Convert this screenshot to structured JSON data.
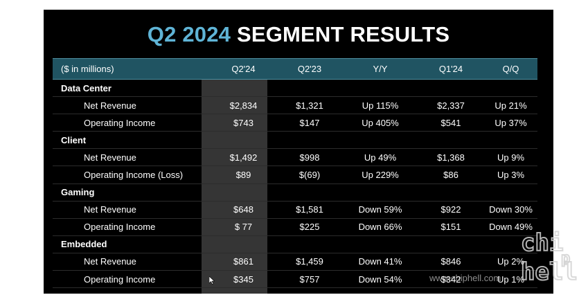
{
  "title": {
    "highlight": "Q2 2024",
    "rest": " SEGMENT RESULTS"
  },
  "header": {
    "label": "($ in millions)",
    "columns": [
      "Q2'24",
      "Q2'23",
      "Y/Y",
      "Q1'24",
      "Q/Q"
    ]
  },
  "rows": [
    {
      "type": "segment",
      "label": "Data Center",
      "values": [
        "",
        "",
        "",
        "",
        ""
      ]
    },
    {
      "type": "metric",
      "label": "Net Revenue",
      "values": [
        "$2,834",
        "$1,321",
        "Up 115%",
        "$2,337",
        "Up 21%"
      ]
    },
    {
      "type": "metric",
      "label": "Operating Income",
      "values": [
        "$743",
        "$147",
        "Up 405%",
        "$541",
        "Up 37%"
      ]
    },
    {
      "type": "segment",
      "label": "Client",
      "values": [
        "",
        "",
        "",
        "",
        ""
      ]
    },
    {
      "type": "metric",
      "label": "Net Revenue",
      "values": [
        "$1,492",
        "$998",
        "Up 49%",
        "$1,368",
        "Up 9%"
      ]
    },
    {
      "type": "metric",
      "label": "Operating Income (Loss)",
      "values": [
        "$89",
        "$(69)",
        "Up 229%",
        "$86",
        "Up 3%"
      ]
    },
    {
      "type": "segment",
      "label": "Gaming",
      "values": [
        "",
        "",
        "",
        "",
        ""
      ]
    },
    {
      "type": "metric",
      "label": "Net Revenue",
      "values": [
        "$648",
        "$1,581",
        "Down 59%",
        "$922",
        "Down 30%"
      ]
    },
    {
      "type": "metric",
      "label": "Operating Income",
      "values": [
        "$ 77",
        "$225",
        "Down 66%",
        "$151",
        "Down 49%"
      ]
    },
    {
      "type": "segment",
      "label": "Embedded",
      "values": [
        "",
        "",
        "",
        "",
        ""
      ]
    },
    {
      "type": "metric",
      "label": "Net Revenue",
      "values": [
        "$861",
        "$1,459",
        "Down 41%",
        "$846",
        "Up 2%"
      ]
    },
    {
      "type": "metric",
      "label": "Operating Income",
      "values": [
        "$345",
        "$757",
        "Down 54%",
        "$342",
        "Up 1%"
      ]
    }
  ],
  "watermark": {
    "url": "www.chiphell.com",
    "logo_text": "chiphell"
  },
  "colors": {
    "accent": "#5fb4d6",
    "header_bg": "#205462",
    "highlight_col": "#353535",
    "background": "#000000"
  }
}
